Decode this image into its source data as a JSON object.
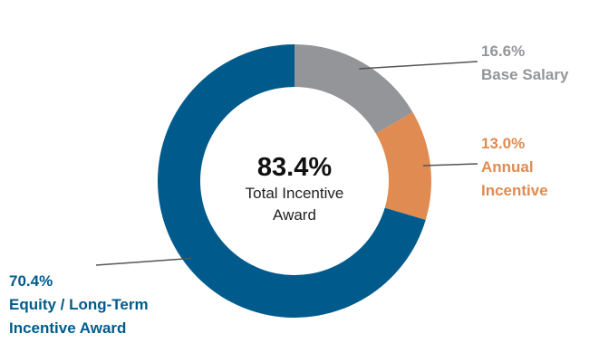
{
  "chart_data": {
    "type": "pie",
    "subtype": "donut",
    "center": {
      "value": "83.4%",
      "caption_lines": [
        "Total Incentive",
        "Award"
      ]
    },
    "slices": [
      {
        "key": "base",
        "value": 16.6,
        "pct_label": "16.6%",
        "label_lines": [
          "Base Salary"
        ],
        "color": "#939598"
      },
      {
        "key": "annual",
        "value": 13.0,
        "pct_label": "13.0%",
        "label_lines": [
          "Annual",
          "Incentive"
        ],
        "color": "#e08b51"
      },
      {
        "key": "equity",
        "value": 70.4,
        "pct_label": "70.4%",
        "label_lines": [
          "Equity / Long-Term",
          "Incentive Award"
        ],
        "color": "#005b8c"
      }
    ],
    "leader_line_color": "#555555"
  }
}
